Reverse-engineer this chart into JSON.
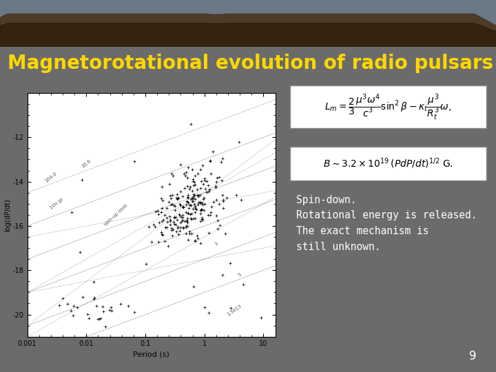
{
  "title": "Magnetorotational evolution of radio pulsars",
  "title_color": "#FFD700",
  "title_fontsize": 20,
  "bg_color": "#6B6B6B",
  "header_bg": "#8B7355",
  "text_color": "#FFFFFF",
  "body_text": "Spin-down.\nRotational energy is released.\nThe exact mechanism is\nstill unknown.",
  "page_number": "9",
  "formula1_box_color": "#FFFFFF",
  "formula2_box_color": "#FFFFFF"
}
